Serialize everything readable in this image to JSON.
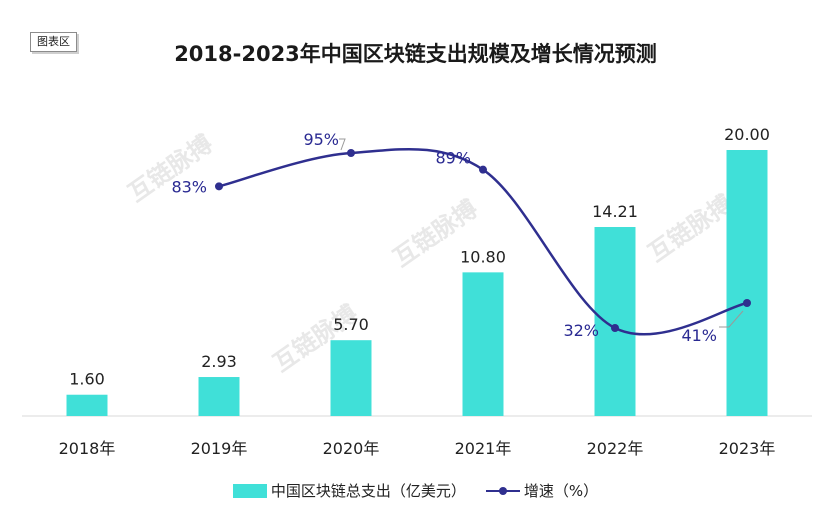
{
  "tag_label": "图表区",
  "chart_data": {
    "type": "bar+line",
    "title": "2018-2023年中国区块链支出规模及增长情况预测",
    "categories": [
      "2018年",
      "2019年",
      "2020年",
      "2021年",
      "2022年",
      "2023年"
    ],
    "series": [
      {
        "name": "中国区块链总支出（亿美元）",
        "type": "bar",
        "values": [
          1.6,
          2.93,
          5.7,
          10.8,
          14.21,
          20.0
        ],
        "labels": [
          "1.60",
          "2.93",
          "5.70",
          "10.80",
          "14.21",
          "20.00"
        ],
        "color": "#40e0d8"
      },
      {
        "name": "增速（%）",
        "type": "line",
        "values": [
          null,
          83,
          95,
          89,
          32,
          41
        ],
        "labels": [
          "",
          "83%",
          "95%",
          "89%",
          "32%",
          "41%"
        ],
        "color": "#2f2f8f"
      }
    ],
    "ylim_bar": [
      0,
      20
    ],
    "legend_position": "bottom",
    "grid": false
  },
  "watermark": "互链脉搏"
}
